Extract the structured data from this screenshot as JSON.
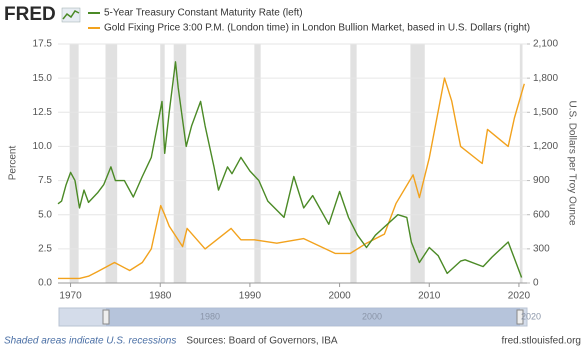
{
  "logo": "FRED",
  "chart_data": {
    "type": "line",
    "series": [
      {
        "name": "5-Year Treasury Constant Maturity Rate (left)",
        "color": "#4b8a26",
        "axis": "y",
        "x": [
          1968.6,
          1969,
          1969.5,
          1970,
          1970.5,
          1971,
          1971.5,
          1972,
          1973,
          1973.7,
          1974.5,
          1975,
          1976,
          1977,
          1978,
          1979,
          1980.2,
          1980.5,
          1981,
          1981.7,
          1982,
          1982.9,
          1983.5,
          1984.5,
          1985,
          1986,
          1986.5,
          1987.5,
          1988,
          1989,
          1990,
          1991,
          1992,
          1993.8,
          1994.9,
          1996,
          1997,
          1998.8,
          2000,
          2001,
          2002,
          2003,
          2004,
          2006.5,
          2007.5,
          2008,
          2008.9,
          2010,
          2011,
          2012,
          2013.5,
          2014,
          2016,
          2017,
          2018.8,
          2019.5,
          2020.3
        ],
        "values": [
          5.8,
          6.0,
          7.2,
          8.1,
          7.5,
          5.5,
          6.8,
          5.9,
          6.6,
          7.2,
          8.5,
          7.5,
          7.5,
          6.3,
          7.8,
          9.2,
          13.3,
          9.5,
          12.5,
          16.2,
          14.3,
          10.0,
          11.5,
          13.3,
          11.5,
          8.5,
          6.8,
          8.5,
          8.0,
          9.2,
          8.2,
          7.5,
          6.0,
          4.8,
          7.8,
          5.5,
          6.4,
          4.3,
          6.7,
          4.8,
          3.5,
          2.6,
          3.5,
          5.0,
          4.8,
          3.0,
          1.5,
          2.6,
          2.0,
          0.7,
          1.6,
          1.7,
          1.2,
          1.9,
          3.0,
          1.8,
          0.4
        ]
      },
      {
        "name": "Gold Fixing Price 3:00 P.M. (London time) in London Bullion Market, based in U.S. Dollars (right)",
        "color": "#f2a21d",
        "axis": "y2",
        "x": [
          1968.6,
          1971,
          1972,
          1973,
          1974.9,
          1976.6,
          1978,
          1979,
          1980.05,
          1980.5,
          1981,
          1982.5,
          1983,
          1985,
          1987.9,
          1989,
          1990.5,
          1993,
          1996,
          1999.5,
          2001.2,
          2003,
          2005,
          2006.3,
          2008.2,
          2008.9,
          2010,
          2011.7,
          2012.5,
          2013.5,
          2015.9,
          2016.5,
          2018.8,
          2019.5,
          2020.6
        ],
        "values": [
          40,
          40,
          60,
          100,
          180,
          110,
          180,
          300,
          680,
          600,
          500,
          320,
          480,
          300,
          480,
          380,
          380,
          350,
          390,
          260,
          260,
          350,
          430,
          700,
          950,
          750,
          1100,
          1800,
          1600,
          1200,
          1050,
          1350,
          1200,
          1450,
          1750
        ]
      }
    ],
    "recessions": [
      [
        1969.9,
        1970.9
      ],
      [
        1973.9,
        1975.2
      ],
      [
        1980.0,
        1980.5
      ],
      [
        1981.5,
        1982.9
      ],
      [
        1990.5,
        1991.2
      ],
      [
        2001.2,
        2001.9
      ],
      [
        2007.9,
        2009.5
      ],
      [
        2020.1,
        2020.4
      ]
    ],
    "xlim": [
      1968.6,
      2020.9
    ],
    "xticks": [
      1970,
      1980,
      1990,
      2000,
      2010,
      2020
    ],
    "ylim": [
      0,
      17.5
    ],
    "yticks": [
      {
        "value": 0,
        "label": "0.0"
      },
      {
        "value": 2.5,
        "label": "2.5"
      },
      {
        "value": 5,
        "label": "5.0"
      },
      {
        "value": 7.5,
        "label": "7.5"
      },
      {
        "value": 10,
        "label": "10.0"
      },
      {
        "value": 12.5,
        "label": "12.5"
      },
      {
        "value": 15,
        "label": "15.0"
      },
      {
        "value": 17.5,
        "label": "17.5"
      }
    ],
    "y2lim": [
      0,
      2100
    ],
    "y2ticks": [
      0,
      300,
      600,
      900,
      {
        "value": 1200,
        "label": "1,200"
      },
      {
        "value": 1500,
        "label": "1,500"
      },
      {
        "value": 1800,
        "label": "1,800"
      },
      {
        "value": 2100,
        "label": "2,100"
      }
    ],
    "ylabel": "Percent",
    "y2label": "U.S. Dollars per Troy Ounce",
    "grid": true,
    "navigator_labels": [
      "1980",
      "2000",
      "2020"
    ],
    "footnote": "Shaded areas indicate U.S. recessions",
    "source": "Sources: Board of Governors, IBA",
    "site": "fred.stlouisfed.org"
  }
}
